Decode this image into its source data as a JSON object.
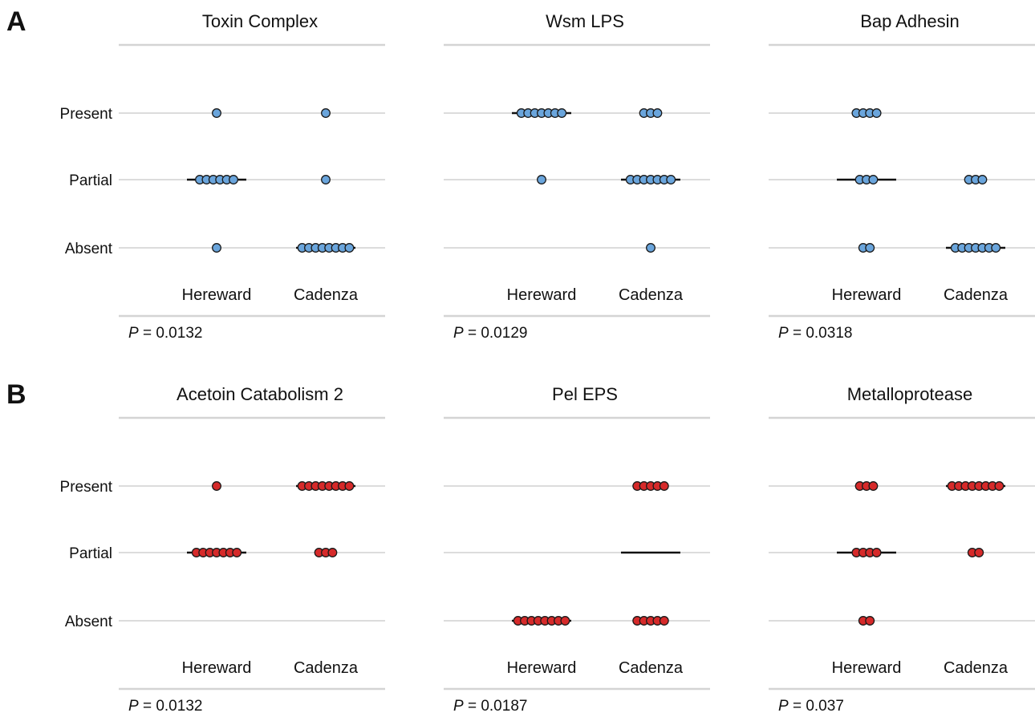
{
  "chart_data": [
    {
      "type": "scatter",
      "panel": "A",
      "title": "Toxin Complex",
      "categories": [
        "Hereward",
        "Cadenza"
      ],
      "levels": [
        "Absent",
        "Partial",
        "Present"
      ],
      "color": "#6aa5dc",
      "p_prefix": "P",
      "p_value": "= 0.0132",
      "series": [
        {
          "name": "Hereward",
          "counts": {
            "Present": 1,
            "Partial": 6,
            "Absent": 1
          },
          "median": "Partial"
        },
        {
          "name": "Cadenza",
          "counts": {
            "Present": 1,
            "Partial": 1,
            "Absent": 8
          },
          "median": "Absent"
        }
      ]
    },
    {
      "type": "scatter",
      "panel": "",
      "title": "Wsm LPS",
      "categories": [
        "Hereward",
        "Cadenza"
      ],
      "levels": [
        "Absent",
        "Partial",
        "Present"
      ],
      "color": "#6aa5dc",
      "p_prefix": "P",
      "p_value": "= 0.0129",
      "series": [
        {
          "name": "Hereward",
          "counts": {
            "Present": 7,
            "Partial": 1,
            "Absent": 0
          },
          "median": "Present"
        },
        {
          "name": "Cadenza",
          "counts": {
            "Present": 3,
            "Partial": 7,
            "Absent": 1
          },
          "median": "Partial"
        }
      ]
    },
    {
      "type": "scatter",
      "panel": "",
      "title": "Bap Adhesin",
      "categories": [
        "Hereward",
        "Cadenza"
      ],
      "levels": [
        "Absent",
        "Partial",
        "Present"
      ],
      "color": "#6aa5dc",
      "p_prefix": "P",
      "p_value": "= 0.0318",
      "series": [
        {
          "name": "Hereward",
          "counts": {
            "Present": 4,
            "Partial": 3,
            "Absent": 2
          },
          "median": "Partial"
        },
        {
          "name": "Cadenza",
          "counts": {
            "Present": 0,
            "Partial": 3,
            "Absent": 7
          },
          "median": "Absent"
        }
      ]
    },
    {
      "type": "scatter",
      "panel": "B",
      "title": "Acetoin Catabolism 2",
      "categories": [
        "Hereward",
        "Cadenza"
      ],
      "levels": [
        "Absent",
        "Partial",
        "Present"
      ],
      "color": "#d62a2a",
      "p_prefix": "P",
      "p_value": "= 0.0132",
      "series": [
        {
          "name": "Hereward",
          "counts": {
            "Present": 1,
            "Partial": 7,
            "Absent": 0
          },
          "median": "Partial"
        },
        {
          "name": "Cadenza",
          "counts": {
            "Present": 8,
            "Partial": 3,
            "Absent": 0
          },
          "median": "Present"
        }
      ]
    },
    {
      "type": "scatter",
      "panel": "",
      "title": "Pel EPS",
      "categories": [
        "Hereward",
        "Cadenza"
      ],
      "levels": [
        "Absent",
        "Partial",
        "Present"
      ],
      "color": "#d62a2a",
      "p_prefix": "P",
      "p_value": "= 0.0187",
      "series": [
        {
          "name": "Hereward",
          "counts": {
            "Present": 0,
            "Partial": 0,
            "Absent": 8
          },
          "median": "Absent"
        },
        {
          "name": "Cadenza",
          "counts": {
            "Present": 5,
            "Partial": 0,
            "Absent": 5
          },
          "median": "Partial"
        }
      ]
    },
    {
      "type": "scatter",
      "panel": "",
      "title": "Metalloprotease",
      "categories": [
        "Hereward",
        "Cadenza"
      ],
      "levels": [
        "Absent",
        "Partial",
        "Present"
      ],
      "color": "#d62a2a",
      "p_prefix": "P",
      "p_value": "= 0.037",
      "series": [
        {
          "name": "Hereward",
          "counts": {
            "Present": 3,
            "Partial": 4,
            "Absent": 2
          },
          "median": "Partial"
        },
        {
          "name": "Cadenza",
          "counts": {
            "Present": 8,
            "Partial": 2,
            "Absent": 0
          },
          "median": "Present"
        }
      ]
    }
  ]
}
